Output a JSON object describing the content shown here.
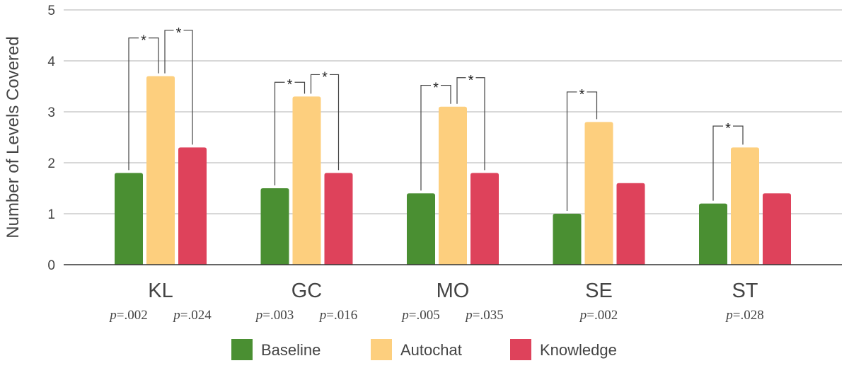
{
  "chart_data": {
    "type": "bar",
    "title": "",
    "xlabel": "",
    "ylabel": "Number of Levels Covered",
    "ylim": [
      0,
      5
    ],
    "yticks": [
      "0",
      "1",
      "2",
      "3",
      "4",
      "5"
    ],
    "grid": true,
    "legend_placement": "bottom",
    "categories": [
      "KL",
      "GC",
      "MO",
      "SE",
      "ST"
    ],
    "series": [
      {
        "name": "Baseline",
        "color": "#4a8f32",
        "values": [
          1.8,
          1.5,
          1.4,
          1.0,
          1.2
        ]
      },
      {
        "name": "Autochat",
        "color": "#fdcf7e",
        "values": [
          3.7,
          3.3,
          3.1,
          2.8,
          2.3
        ]
      },
      {
        "name": "Knowledge",
        "color": "#de425b",
        "values": [
          2.3,
          1.8,
          1.8,
          1.6,
          1.4
        ]
      }
    ],
    "significance": [
      {
        "category": "KL",
        "pairs": [
          {
            "between": [
              "Baseline",
              "Autochat"
            ],
            "label": "*",
            "p": ".002",
            "level": 4.45
          },
          {
            "between": [
              "Autochat",
              "Knowledge"
            ],
            "label": "*",
            "p": ".024",
            "level": 4.6
          }
        ]
      },
      {
        "category": "GC",
        "pairs": [
          {
            "between": [
              "Baseline",
              "Autochat"
            ],
            "label": "*",
            "p": ".003",
            "level": 3.58
          },
          {
            "between": [
              "Autochat",
              "Knowledge"
            ],
            "label": "*",
            "p": ".016",
            "level": 3.73
          }
        ]
      },
      {
        "category": "MO",
        "pairs": [
          {
            "between": [
              "Baseline",
              "Autochat"
            ],
            "label": "*",
            "p": ".005",
            "level": 3.52
          },
          {
            "between": [
              "Autochat",
              "Knowledge"
            ],
            "label": "*",
            "p": ".035",
            "level": 3.67
          }
        ]
      },
      {
        "category": "SE",
        "pairs": [
          {
            "between": [
              "Baseline",
              "Autochat"
            ],
            "label": "*",
            "p": ".002",
            "level": 3.39
          }
        ]
      },
      {
        "category": "ST",
        "pairs": [
          {
            "between": [
              "Baseline",
              "Autochat"
            ],
            "label": "*",
            "p": ".028",
            "level": 2.72
          }
        ]
      }
    ],
    "p_prefix": "p"
  }
}
